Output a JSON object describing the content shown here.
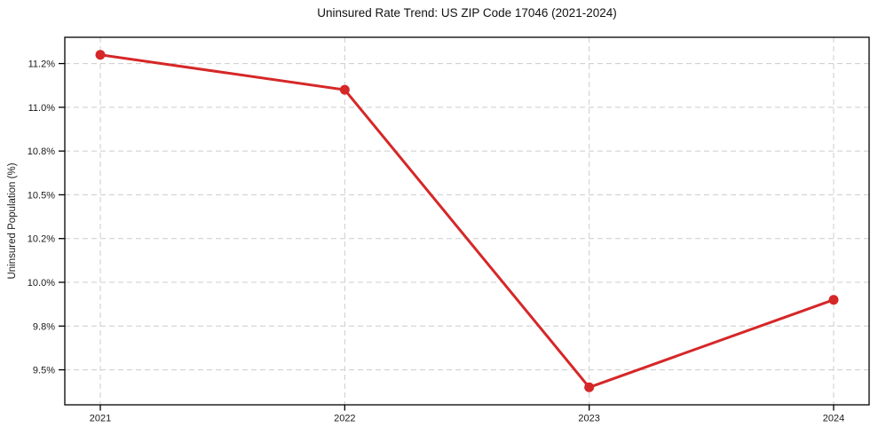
{
  "figure": {
    "title": "Uninsured Rate Trend: US ZIP Code 17046 (2021-2024)"
  },
  "chart_data": {
    "type": "line",
    "title": "Uninsured Rate Trend: US ZIP Code 17046 (2021-2024)",
    "xlabel": "",
    "ylabel": "Uninsured Population (%)",
    "categories": [
      "2021",
      "2022",
      "2023",
      "2024"
    ],
    "values": [
      11.3,
      11.1,
      9.4,
      9.9
    ],
    "ylim": [
      9.3,
      11.4
    ],
    "y_ticks": [
      9.5,
      9.75,
      10.0,
      10.25,
      10.5,
      10.75,
      11.0,
      11.25
    ],
    "y_tick_labels": [
      "9.5%",
      "9.8%",
      "10.0%",
      "10.2%",
      "10.5%",
      "10.8%",
      "11.0%",
      "11.2%"
    ],
    "grid": true,
    "grid_style": "dashed",
    "legend": "none",
    "marker": "circle",
    "colors": {
      "line": "#d62728",
      "marker": "#d62728",
      "grid": "#cccccc",
      "text": "#1a1a1a",
      "spine": "#000000",
      "background": "#ffffff"
    }
  }
}
